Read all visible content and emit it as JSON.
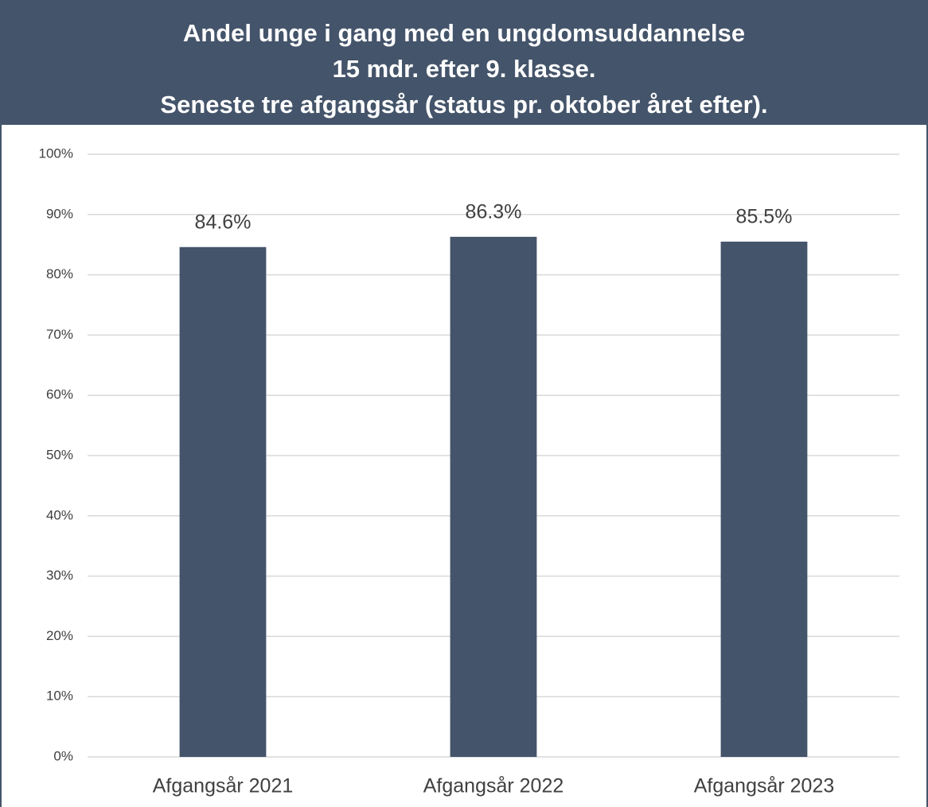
{
  "chart_data": {
    "type": "bar",
    "title": [
      "Andel unge i gang med en ungdomsuddannelse",
      "15 mdr. efter 9. klasse.",
      "Seneste tre afgangsår (status pr. oktober året efter)."
    ],
    "categories": [
      "Afgangsår 2021",
      "Afgangsår 2022",
      "Afgangsår 2023"
    ],
    "values": [
      84.6,
      86.3,
      85.5
    ],
    "value_labels": [
      "84.6%",
      "86.3%",
      "85.5%"
    ],
    "color": "#44546a",
    "ylim": [
      0,
      100
    ],
    "yticks": [
      {
        "value": 0,
        "label": "0%"
      },
      {
        "value": 10,
        "label": "10%"
      },
      {
        "value": 20,
        "label": "20%"
      },
      {
        "value": 30,
        "label": "30%"
      },
      {
        "value": 40,
        "label": "40%"
      },
      {
        "value": 50,
        "label": "50%"
      },
      {
        "value": 60,
        "label": "60%"
      },
      {
        "value": 70,
        "label": "70%"
      },
      {
        "value": 80,
        "label": "80%"
      },
      {
        "value": 90,
        "label": "90%"
      },
      {
        "value": 100,
        "label": "100%"
      }
    ],
    "grid": true
  }
}
